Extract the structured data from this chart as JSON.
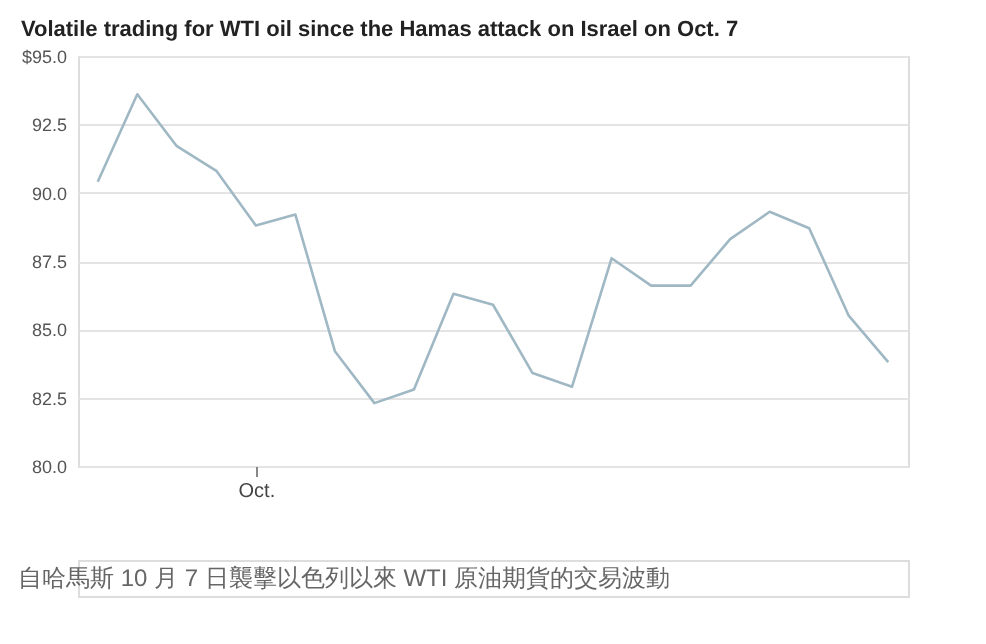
{
  "chart_data": {
    "type": "line",
    "title": "Volatile trading for WTI oil since the Hamas attack on Israel on Oct. 7",
    "categories": [
      null,
      null,
      null,
      null,
      "Oct.",
      null,
      null,
      null,
      null,
      null,
      null,
      null,
      null,
      null,
      null,
      null,
      null,
      null,
      null,
      null,
      null
    ],
    "series": [
      {
        "color": "#9fb8c4",
        "values": [
          90.4,
          93.6,
          91.7,
          90.8,
          88.8,
          89.2,
          84.2,
          82.3,
          82.8,
          86.3,
          85.9,
          83.4,
          82.9,
          87.6,
          86.6,
          86.6,
          88.3,
          89.3,
          88.7,
          85.5,
          83.8
        ]
      }
    ],
    "ylim": [
      80,
      95
    ],
    "yticks": [
      {
        "value": 80,
        "label": "80.0"
      },
      {
        "value": 82.5,
        "label": "82.5"
      },
      {
        "value": 85,
        "label": "85.0"
      },
      {
        "value": 87.5,
        "label": "87.5"
      },
      {
        "value": 90,
        "label": "90.0"
      },
      {
        "value": 92.5,
        "label": "92.5"
      },
      {
        "value": 95,
        "label": "$95.0"
      }
    ],
    "grid": "y",
    "marker": "none",
    "line_style": "solid",
    "annotations": [
      "自哈馬斯 10 月 7 日襲擊以色列以來 WTI 原油期貨的交易波動"
    ]
  }
}
